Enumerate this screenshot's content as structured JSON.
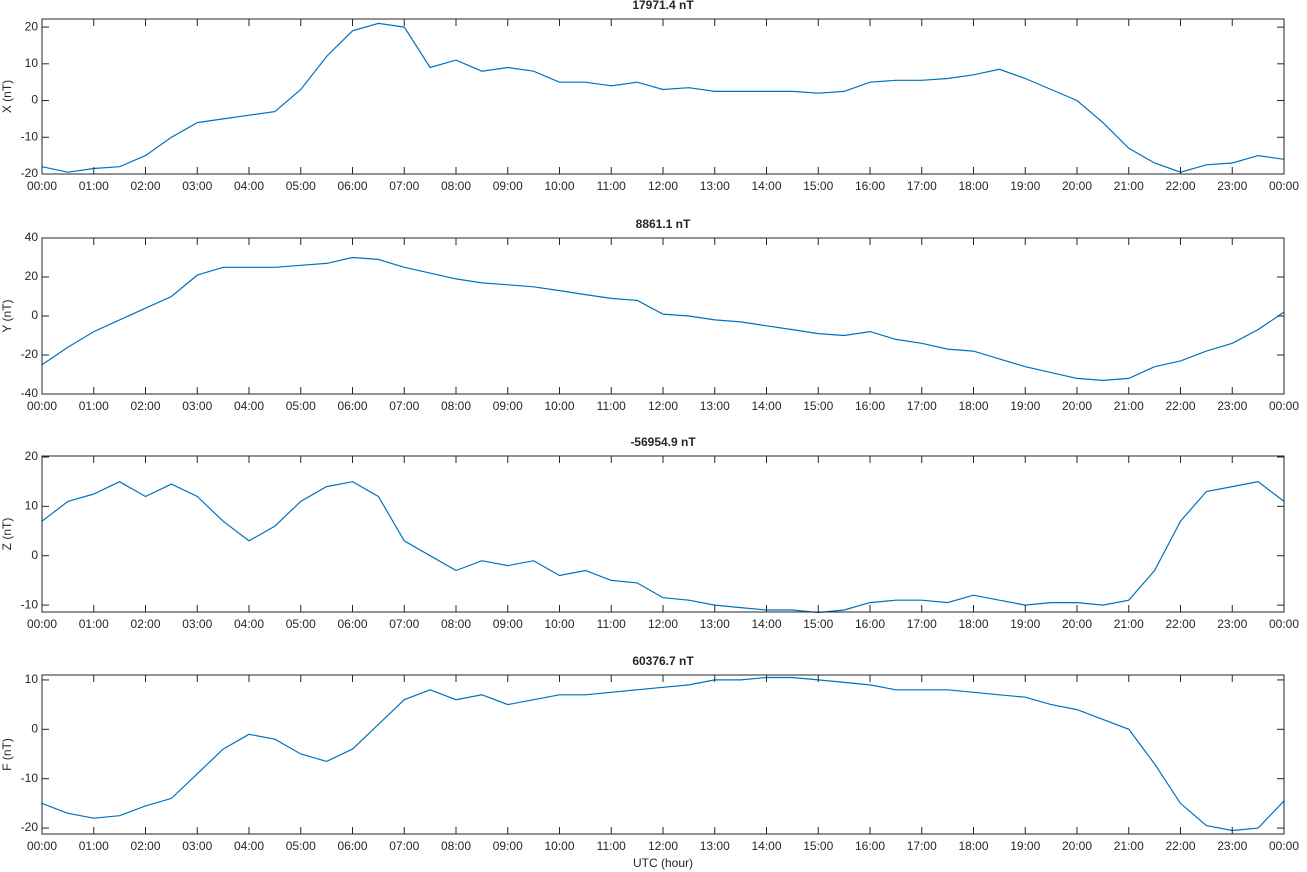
{
  "chart_data": [
    {
      "type": "line",
      "title": "17971.4 nT",
      "ylabel": "X (nT)",
      "x": [
        0,
        0.5,
        1,
        1.5,
        2,
        2.5,
        3,
        3.5,
        4,
        4.5,
        5,
        5.5,
        6,
        6.5,
        7,
        7.5,
        8,
        8.5,
        9,
        9.5,
        10,
        10.5,
        11,
        11.5,
        12,
        12.5,
        13,
        13.5,
        14,
        14.5,
        15,
        15.5,
        16,
        16.5,
        17,
        17.5,
        18,
        18.5,
        19,
        19.5,
        20,
        20.5,
        21,
        21.5,
        22,
        22.5,
        23,
        23.5,
        24
      ],
      "values": [
        -18,
        -19.5,
        -18.5,
        -18,
        -15,
        -10,
        -6,
        -5,
        -4,
        -3,
        3,
        12,
        19,
        21,
        20,
        9,
        11,
        8,
        9,
        8,
        5,
        5,
        4,
        5,
        3,
        3.5,
        2.5,
        2.5,
        2.5,
        2.5,
        2,
        2.5,
        5,
        5.5,
        5.5,
        6,
        7,
        8.5,
        6,
        3,
        0,
        -6,
        -13,
        -17,
        -19.5,
        -17.5,
        -17,
        -15,
        -16
      ],
      "color": "#0072bd",
      "ylim": [
        -20,
        22.2
      ],
      "yticks": [
        -20,
        -10,
        0,
        10,
        20
      ],
      "xlim": [
        0,
        24
      ],
      "xticks": [
        {
          "value": 0,
          "label": "00:00"
        },
        {
          "value": 1,
          "label": "01:00"
        },
        {
          "value": 2,
          "label": "02:00"
        },
        {
          "value": 3,
          "label": "03:00"
        },
        {
          "value": 4,
          "label": "04:00"
        },
        {
          "value": 5,
          "label": "05:00"
        },
        {
          "value": 6,
          "label": "06:00"
        },
        {
          "value": 7,
          "label": "07:00"
        },
        {
          "value": 8,
          "label": "08:00"
        },
        {
          "value": 9,
          "label": "09:00"
        },
        {
          "value": 10,
          "label": "10:00"
        },
        {
          "value": 11,
          "label": "11:00"
        },
        {
          "value": 12,
          "label": "12:00"
        },
        {
          "value": 13,
          "label": "13:00"
        },
        {
          "value": 14,
          "label": "14:00"
        },
        {
          "value": 15,
          "label": "15:00"
        },
        {
          "value": 16,
          "label": "16:00"
        },
        {
          "value": 17,
          "label": "17:00"
        },
        {
          "value": 18,
          "label": "18:00"
        },
        {
          "value": 19,
          "label": "19:00"
        },
        {
          "value": 20,
          "label": "20:00"
        },
        {
          "value": 21,
          "label": "21:00"
        },
        {
          "value": 22,
          "label": "22:00"
        },
        {
          "value": 23,
          "label": "23:00"
        },
        {
          "value": 24,
          "label": "00:00"
        }
      ]
    },
    {
      "type": "line",
      "title": "8861.1 nT",
      "ylabel": "Y (nT)",
      "x": [
        0,
        0.5,
        1,
        1.5,
        2,
        2.5,
        3,
        3.5,
        4,
        4.5,
        5,
        5.5,
        6,
        6.5,
        7,
        7.5,
        8,
        8.5,
        9,
        9.5,
        10,
        10.5,
        11,
        11.5,
        12,
        12.5,
        13,
        13.5,
        14,
        14.5,
        15,
        15.5,
        16,
        16.5,
        17,
        17.5,
        18,
        18.5,
        19,
        19.5,
        20,
        20.5,
        21,
        21.5,
        22,
        22.5,
        23,
        23.5,
        24
      ],
      "values": [
        -25,
        -16,
        -8,
        -2,
        4,
        10,
        21,
        25,
        25,
        25,
        26,
        27,
        30,
        29,
        25,
        22,
        19,
        17,
        16,
        15,
        13,
        11,
        9,
        8,
        1,
        0,
        -2,
        -3,
        -5,
        -7,
        -9,
        -10,
        -8,
        -12,
        -14,
        -17,
        -18,
        -22,
        -26,
        -29,
        -32,
        -33,
        -32,
        -26,
        -23,
        -18,
        -14,
        -7,
        2
      ],
      "color": "#0072bd",
      "ylim": [
        -40,
        40
      ],
      "yticks": [
        -40,
        -20,
        0,
        20,
        40
      ],
      "xlim": [
        0,
        24
      ],
      "xticks": [
        {
          "value": 0,
          "label": "00:00"
        },
        {
          "value": 1,
          "label": "01:00"
        },
        {
          "value": 2,
          "label": "02:00"
        },
        {
          "value": 3,
          "label": "03:00"
        },
        {
          "value": 4,
          "label": "04:00"
        },
        {
          "value": 5,
          "label": "05:00"
        },
        {
          "value": 6,
          "label": "06:00"
        },
        {
          "value": 7,
          "label": "07:00"
        },
        {
          "value": 8,
          "label": "08:00"
        },
        {
          "value": 9,
          "label": "09:00"
        },
        {
          "value": 10,
          "label": "10:00"
        },
        {
          "value": 11,
          "label": "11:00"
        },
        {
          "value": 12,
          "label": "12:00"
        },
        {
          "value": 13,
          "label": "13:00"
        },
        {
          "value": 14,
          "label": "14:00"
        },
        {
          "value": 15,
          "label": "15:00"
        },
        {
          "value": 16,
          "label": "16:00"
        },
        {
          "value": 17,
          "label": "17:00"
        },
        {
          "value": 18,
          "label": "18:00"
        },
        {
          "value": 19,
          "label": "19:00"
        },
        {
          "value": 20,
          "label": "20:00"
        },
        {
          "value": 21,
          "label": "21:00"
        },
        {
          "value": 22,
          "label": "22:00"
        },
        {
          "value": 23,
          "label": "23:00"
        },
        {
          "value": 24,
          "label": "00:00"
        }
      ]
    },
    {
      "type": "line",
      "title": "-56954.9 nT",
      "ylabel": "Z (nT)",
      "x": [
        0,
        0.5,
        1,
        1.5,
        2,
        2.5,
        3,
        3.5,
        4,
        4.5,
        5,
        5.5,
        6,
        6.5,
        7,
        7.5,
        8,
        8.5,
        9,
        9.5,
        10,
        10.5,
        11,
        11.5,
        12,
        12.5,
        13,
        13.5,
        14,
        14.5,
        15,
        15.5,
        16,
        16.5,
        17,
        17.5,
        18,
        18.5,
        19,
        19.5,
        20,
        20.5,
        21,
        21.5,
        22,
        22.5,
        23,
        23.5,
        24
      ],
      "values": [
        7,
        11,
        12.5,
        15,
        12,
        14.5,
        12,
        7,
        3,
        6,
        11,
        14,
        15,
        12,
        3,
        0,
        -3,
        -1,
        -2,
        -1,
        -4,
        -3,
        -5,
        -5.5,
        -8.5,
        -9,
        -10,
        -10.5,
        -11,
        -11,
        -11.5,
        -11,
        -9.5,
        -9,
        -9,
        -9.5,
        -8,
        -9,
        -10,
        -9.5,
        -9.5,
        -10,
        -9,
        -3,
        7,
        13,
        14,
        15,
        11
      ],
      "color": "#0072bd",
      "ylim": [
        -11.4,
        20.2
      ],
      "yticks": [
        -10,
        0,
        10,
        20
      ],
      "xlim": [
        0,
        24
      ],
      "xticks": [
        {
          "value": 0,
          "label": "00:00"
        },
        {
          "value": 1,
          "label": "01:00"
        },
        {
          "value": 2,
          "label": "02:00"
        },
        {
          "value": 3,
          "label": "03:00"
        },
        {
          "value": 4,
          "label": "04:00"
        },
        {
          "value": 5,
          "label": "05:00"
        },
        {
          "value": 6,
          "label": "06:00"
        },
        {
          "value": 7,
          "label": "07:00"
        },
        {
          "value": 8,
          "label": "08:00"
        },
        {
          "value": 9,
          "label": "09:00"
        },
        {
          "value": 10,
          "label": "10:00"
        },
        {
          "value": 11,
          "label": "11:00"
        },
        {
          "value": 12,
          "label": "12:00"
        },
        {
          "value": 13,
          "label": "13:00"
        },
        {
          "value": 14,
          "label": "14:00"
        },
        {
          "value": 15,
          "label": "15:00"
        },
        {
          "value": 16,
          "label": "16:00"
        },
        {
          "value": 17,
          "label": "17:00"
        },
        {
          "value": 18,
          "label": "18:00"
        },
        {
          "value": 19,
          "label": "19:00"
        },
        {
          "value": 20,
          "label": "20:00"
        },
        {
          "value": 21,
          "label": "21:00"
        },
        {
          "value": 22,
          "label": "22:00"
        },
        {
          "value": 23,
          "label": "23:00"
        },
        {
          "value": 24,
          "label": "00:00"
        }
      ]
    },
    {
      "type": "line",
      "title": "60376.7 nT",
      "ylabel": "F (nT)",
      "xlabel": "UTC (hour)",
      "x": [
        0,
        0.5,
        1,
        1.5,
        2,
        2.5,
        3,
        3.5,
        4,
        4.5,
        5,
        5.5,
        6,
        6.5,
        7,
        7.5,
        8,
        8.5,
        9,
        9.5,
        10,
        10.5,
        11,
        11.5,
        12,
        12.5,
        13,
        13.5,
        14,
        14.5,
        15,
        15.5,
        16,
        16.5,
        17,
        17.5,
        18,
        18.5,
        19,
        19.5,
        20,
        20.5,
        21,
        21.5,
        22,
        22.5,
        23,
        23.5,
        24
      ],
      "values": [
        -15,
        -17,
        -18,
        -17.5,
        -15.5,
        -14,
        -9,
        -4,
        -1,
        -2,
        -5,
        -6.5,
        -4,
        1,
        6,
        8,
        6,
        7,
        5,
        6,
        7,
        7,
        7.5,
        8,
        8.5,
        9,
        10,
        10,
        10.5,
        10.5,
        10,
        9.5,
        9,
        8,
        8,
        8,
        7.5,
        7,
        6.5,
        5,
        4,
        2,
        0,
        -7,
        -15,
        -19.5,
        -20.5,
        -20,
        -14.5
      ],
      "color": "#0072bd",
      "ylim": [
        -21.2,
        11
      ],
      "yticks": [
        -20,
        -10,
        0,
        10
      ],
      "xlim": [
        0,
        24
      ],
      "xticks": [
        {
          "value": 0,
          "label": "00:00"
        },
        {
          "value": 1,
          "label": "01:00"
        },
        {
          "value": 2,
          "label": "02:00"
        },
        {
          "value": 3,
          "label": "03:00"
        },
        {
          "value": 4,
          "label": "04:00"
        },
        {
          "value": 5,
          "label": "05:00"
        },
        {
          "value": 6,
          "label": "06:00"
        },
        {
          "value": 7,
          "label": "07:00"
        },
        {
          "value": 8,
          "label": "08:00"
        },
        {
          "value": 9,
          "label": "09:00"
        },
        {
          "value": 10,
          "label": "10:00"
        },
        {
          "value": 11,
          "label": "11:00"
        },
        {
          "value": 12,
          "label": "12:00"
        },
        {
          "value": 13,
          "label": "13:00"
        },
        {
          "value": 14,
          "label": "14:00"
        },
        {
          "value": 15,
          "label": "15:00"
        },
        {
          "value": 16,
          "label": "16:00"
        },
        {
          "value": 17,
          "label": "17:00"
        },
        {
          "value": 18,
          "label": "18:00"
        },
        {
          "value": 19,
          "label": "19:00"
        },
        {
          "value": 20,
          "label": "20:00"
        },
        {
          "value": 21,
          "label": "21:00"
        },
        {
          "value": 22,
          "label": "22:00"
        },
        {
          "value": 23,
          "label": "23:00"
        },
        {
          "value": 24,
          "label": "00:00"
        }
      ]
    }
  ]
}
